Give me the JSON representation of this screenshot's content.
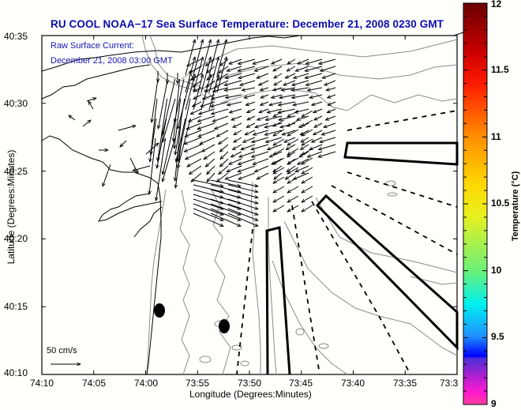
{
  "title": "RU COOL  NOAA−17  Sea Surface Temperature:  December 21, 2008 0230 GMT",
  "legend": {
    "line1": "Raw Surface Current:",
    "line2": "December 21, 2008 03:00 GMT"
  },
  "scale_arrow": {
    "label": "50 cm/s"
  },
  "axes": {
    "xlabel": "Longitude (Degrees:Minutes)",
    "ylabel": "Latitude (Degrees:Minutes)",
    "xticks": [
      "74:10",
      "74:05",
      "74:00",
      "73:55",
      "73:50",
      "73:45",
      "73:40",
      "73:35",
      "73:3"
    ],
    "yticks": [
      "40:35",
      "40:30",
      "40:25",
      "40:20",
      "40:15",
      "40:10"
    ]
  },
  "colorbar": {
    "label": "Temperature (°C)",
    "ticks": [
      "12",
      "11.5",
      "11",
      "10.5",
      "10",
      "9.5",
      "9"
    ],
    "range": [
      9,
      12
    ],
    "colors": {
      "top": "#6b0000",
      "red": "#ff1a00",
      "orange": "#ff8c00",
      "yellow": "#f5f500",
      "green": "#66f07a",
      "cyan": "#00f0f0",
      "blue": "#0000ff",
      "purple": "#6a2bd0",
      "magenta": "#ff1ad0"
    }
  },
  "chart_data": {
    "type": "map",
    "title": "RU COOL  NOAA-17  Sea Surface Temperature:  December 21, 2008 0230 GMT",
    "xlabel": "Longitude (Degrees:Minutes)",
    "ylabel": "Latitude (Degrees:Minutes)",
    "xlim_deg_west": [
      74.1667,
      73.5
    ],
    "ylim_deg_north": [
      40.1667,
      40.5833
    ],
    "colorbar_range": [
      9,
      12
    ],
    "colorbar_label": "Temperature (°C)",
    "overlay": "Raw surface current vectors, December 21, 2008 03:00 GMT",
    "scale_vector_cm_s": 50,
    "dominant_current_direction": "westward / southwestward in Lower NY Harbor apex, converging toward Sandy Hook channel",
    "features": [
      "coastline",
      "bathymetry contours",
      "shipping lanes (dashed)",
      "traffic separation zones (bold outlines)",
      "two HF radar sites (filled ovals)"
    ],
    "sst_coverage": "none visible (cloud/no data)"
  }
}
